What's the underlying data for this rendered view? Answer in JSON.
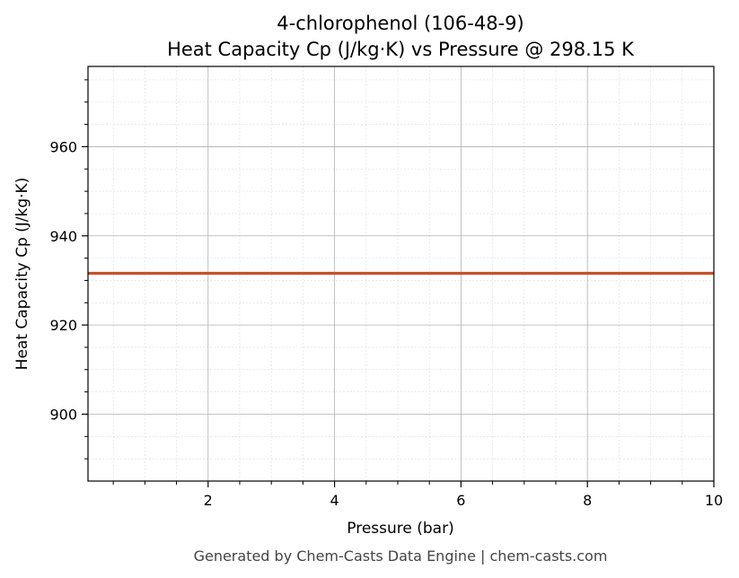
{
  "chart_data": {
    "type": "line",
    "title": "4-chlorophenol (106-48-9)",
    "subtitle": "Heat Capacity Cp (J/kg·K) vs Pressure @ 298.15 K",
    "xlabel": "Pressure (bar)",
    "ylabel": "Heat Capacity Cp (J/kg·K)",
    "xlim": [
      0.1,
      10
    ],
    "ylim": [
      885,
      978
    ],
    "x_ticks": [
      2,
      4,
      6,
      8,
      10
    ],
    "y_ticks": [
      900,
      920,
      940,
      960
    ],
    "grid": true,
    "series": [
      {
        "x": [
          0.1,
          10
        ],
        "y": [
          931.6,
          931.6
        ],
        "color": "#c8502a"
      }
    ]
  },
  "footer": "Generated by Chem-Casts Data Engine | chem-casts.com"
}
